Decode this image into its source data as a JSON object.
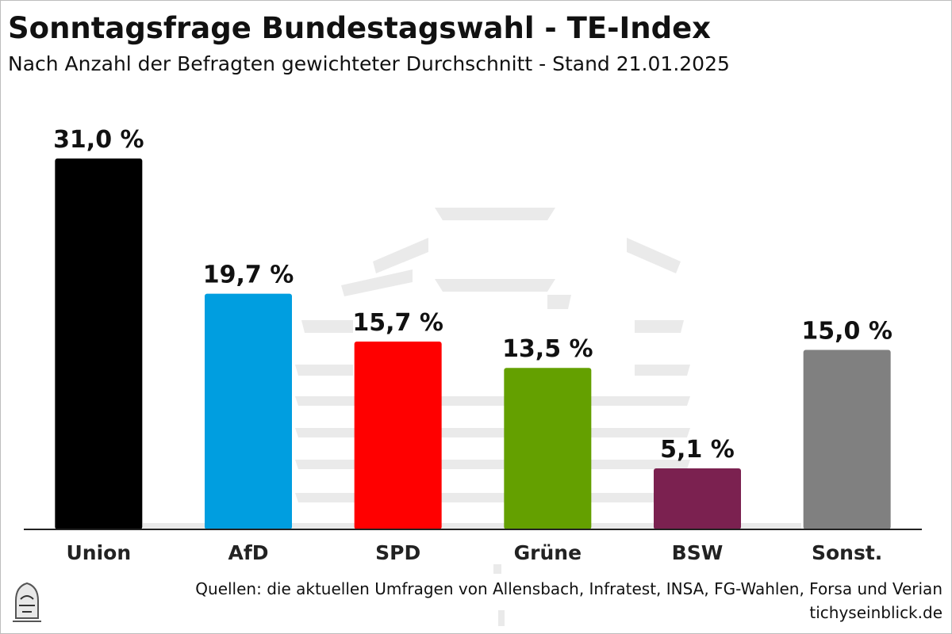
{
  "title": "Sonntagsfrage Bundestagswahl - TE-Index",
  "subtitle": "Nach Anzahl der Befragten gewichteter Durchschnitt - Stand 21.01.2025",
  "source": "Quellen: die aktuellen Umfragen von Allensbach, Infratest, INSA, FG-Wahlen, Forsa und Verian",
  "site": "tichyseinblick.de",
  "chart_data": {
    "type": "bar",
    "categories": [
      "Union",
      "AfD",
      "SPD",
      "Grüne",
      "BSW",
      "Sonst."
    ],
    "values": [
      31.0,
      19.7,
      15.7,
      13.5,
      5.1,
      15.0
    ],
    "value_labels": [
      "31,0 %",
      "19,7 %",
      "15,7 %",
      "13,5 %",
      "5,1 %",
      "15,0 %"
    ],
    "colors": [
      "#000000",
      "#009ee0",
      "#ff0000",
      "#64a000",
      "#7b2150",
      "#808080"
    ],
    "ylim": [
      0,
      31.0
    ],
    "grid": false,
    "legend": "none"
  }
}
